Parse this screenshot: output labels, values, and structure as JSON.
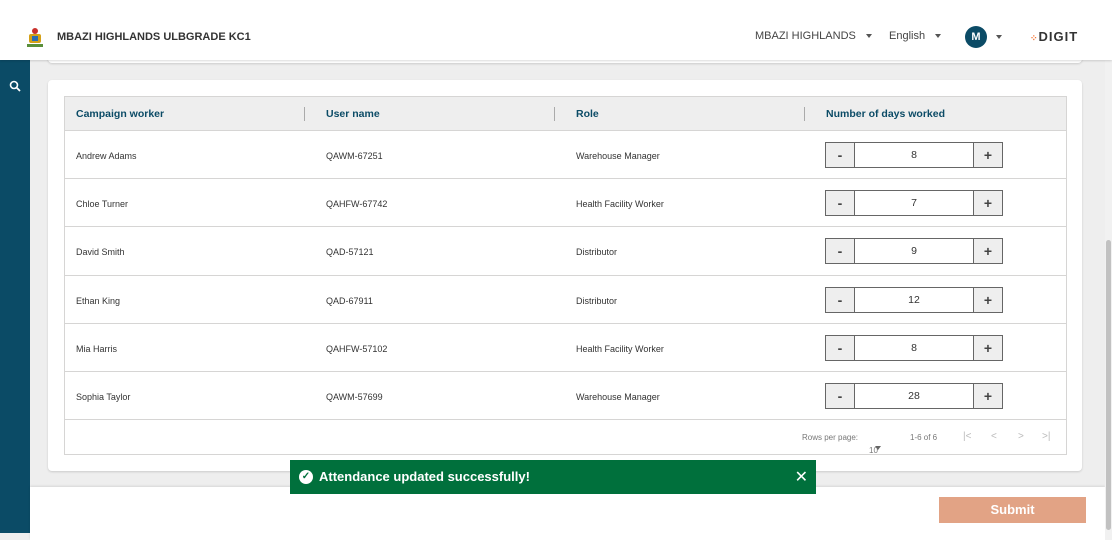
{
  "header": {
    "city_title": "MBAZI HIGHLANDS ULBGRADE KC1",
    "tenant": "MBAZI HIGHLANDS",
    "language": "English",
    "avatar_initial": "M",
    "brand": "DIGIT"
  },
  "table": {
    "columns": [
      "Campaign worker",
      "User name",
      "Role",
      "Number of days worked"
    ],
    "rows": [
      {
        "name": "Andrew Adams",
        "username": "QAWM-67251",
        "role": "Warehouse Manager",
        "days": "8"
      },
      {
        "name": "Chloe Turner",
        "username": "QAHFW-67742",
        "role": "Health Facility Worker",
        "days": "7"
      },
      {
        "name": "David Smith",
        "username": "QAD-57121",
        "role": "Distributor",
        "days": "9"
      },
      {
        "name": "Ethan King",
        "username": "QAD-67911",
        "role": "Distributor",
        "days": "12"
      },
      {
        "name": "Mia Harris",
        "username": "QAHFW-57102",
        "role": "Health Facility Worker",
        "days": "8"
      },
      {
        "name": "Sophia Taylor",
        "username": "QAWM-57699",
        "role": "Warehouse Manager",
        "days": "28"
      }
    ],
    "minus": "-",
    "plus": "+"
  },
  "pagination": {
    "rows_per_page_label": "Rows per page:",
    "rows_per_page": "10",
    "range": "1-6 of 6",
    "first": "|<",
    "prev": "<",
    "next": ">",
    "last": ">|"
  },
  "toast": {
    "message": "Attendance updated successfully!",
    "close": "✕",
    "icon": "✓"
  },
  "actions": {
    "submit": "Submit"
  },
  "colors": {
    "primary": "#0b4b66",
    "accent": "#f47738",
    "success": "#00703c",
    "submit_disabled": "#e2a385"
  }
}
